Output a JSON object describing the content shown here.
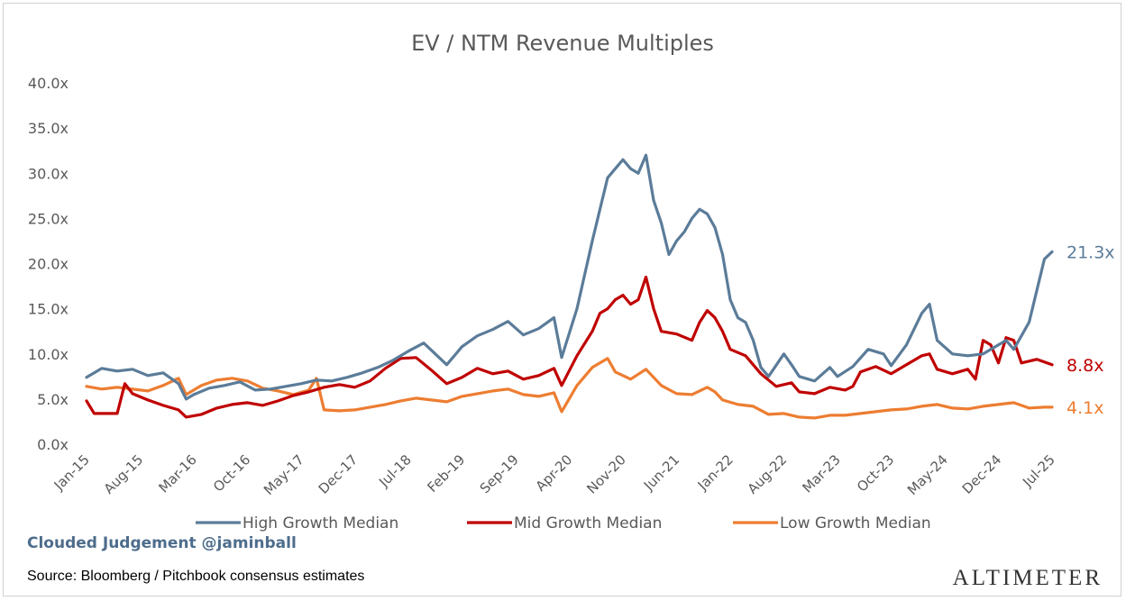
{
  "chart_data": {
    "type": "line",
    "title": "EV / NTM Revenue Multiples",
    "xlabel": "",
    "ylabel": "",
    "x_ticks": [
      "Jan-15",
      "Aug-15",
      "Mar-16",
      "Oct-16",
      "May-17",
      "Dec-17",
      "Jul-18",
      "Feb-19",
      "Sep-19",
      "Apr-20",
      "Nov-20",
      "Jun-21",
      "Jan-22",
      "Aug-22",
      "Mar-23",
      "Oct-23",
      "May-24",
      "Dec-24",
      "Jul-25"
    ],
    "y_ticks": [
      "0.0x",
      "5.0x",
      "10.0x",
      "15.0x",
      "20.0x",
      "25.0x",
      "30.0x",
      "35.0x",
      "40.0x"
    ],
    "ylim": [
      0,
      40
    ],
    "xlim": [
      "Jan-15",
      "Jul-25"
    ],
    "grid": false,
    "legend_position": "bottom",
    "series": [
      {
        "name": "High Growth Median",
        "color": "#5b7c99",
        "end_label": "21.3x",
        "points": [
          [
            "2015-01",
            7.4
          ],
          [
            "2015-03",
            8.4
          ],
          [
            "2015-05",
            8.1
          ],
          [
            "2015-07",
            8.3
          ],
          [
            "2015-09",
            7.6
          ],
          [
            "2015-11",
            7.9
          ],
          [
            "2016-01",
            6.7
          ],
          [
            "2016-02",
            5.0
          ],
          [
            "2016-03",
            5.5
          ],
          [
            "2016-05",
            6.2
          ],
          [
            "2016-07",
            6.5
          ],
          [
            "2016-09",
            6.9
          ],
          [
            "2016-11",
            6.0
          ],
          [
            "2017-01",
            6.1
          ],
          [
            "2017-03",
            6.4
          ],
          [
            "2017-05",
            6.7
          ],
          [
            "2017-07",
            7.1
          ],
          [
            "2017-09",
            7.0
          ],
          [
            "2017-11",
            7.4
          ],
          [
            "2018-01",
            7.9
          ],
          [
            "2018-03",
            8.5
          ],
          [
            "2018-05",
            9.3
          ],
          [
            "2018-07",
            10.3
          ],
          [
            "2018-09",
            11.2
          ],
          [
            "2018-10",
            10.4
          ],
          [
            "2018-12",
            8.8
          ],
          [
            "2019-02",
            10.8
          ],
          [
            "2019-04",
            12.0
          ],
          [
            "2019-06",
            12.7
          ],
          [
            "2019-08",
            13.6
          ],
          [
            "2019-10",
            12.1
          ],
          [
            "2019-12",
            12.8
          ],
          [
            "2020-02",
            14.0
          ],
          [
            "2020-03",
            9.6
          ],
          [
            "2020-05",
            15.0
          ],
          [
            "2020-07",
            22.5
          ],
          [
            "2020-08",
            26.0
          ],
          [
            "2020-09",
            29.5
          ],
          [
            "2020-10",
            30.5
          ],
          [
            "2020-11",
            31.5
          ],
          [
            "2020-12",
            30.5
          ],
          [
            "2021-01",
            30.0
          ],
          [
            "2021-02",
            32.0
          ],
          [
            "2021-03",
            27.0
          ],
          [
            "2021-04",
            24.5
          ],
          [
            "2021-05",
            21.0
          ],
          [
            "2021-06",
            22.5
          ],
          [
            "2021-07",
            23.5
          ],
          [
            "2021-08",
            25.0
          ],
          [
            "2021-09",
            26.0
          ],
          [
            "2021-10",
            25.5
          ],
          [
            "2021-11",
            24.0
          ],
          [
            "2021-12",
            21.0
          ],
          [
            "2022-01",
            16.0
          ],
          [
            "2022-02",
            14.0
          ],
          [
            "2022-03",
            13.5
          ],
          [
            "2022-04",
            11.5
          ],
          [
            "2022-05",
            8.5
          ],
          [
            "2022-06",
            7.5
          ],
          [
            "2022-08",
            10.0
          ],
          [
            "2022-09",
            8.8
          ],
          [
            "2022-10",
            7.5
          ],
          [
            "2022-12",
            7.0
          ],
          [
            "2023-02",
            8.5
          ],
          [
            "2023-03",
            7.5
          ],
          [
            "2023-05",
            8.6
          ],
          [
            "2023-07",
            10.5
          ],
          [
            "2023-09",
            10.0
          ],
          [
            "2023-10",
            8.7
          ],
          [
            "2023-12",
            11.0
          ],
          [
            "2024-02",
            14.5
          ],
          [
            "2024-03",
            15.5
          ],
          [
            "2024-04",
            11.5
          ],
          [
            "2024-06",
            10.0
          ],
          [
            "2024-08",
            9.8
          ],
          [
            "2024-10",
            10.0
          ],
          [
            "2024-12",
            11.0
          ],
          [
            "2025-01",
            11.5
          ],
          [
            "2025-02",
            10.5
          ],
          [
            "2025-03",
            12.0
          ],
          [
            "2025-04",
            13.5
          ],
          [
            "2025-05",
            17.0
          ],
          [
            "2025-06",
            20.5
          ],
          [
            "2025-07",
            21.3
          ]
        ]
      },
      {
        "name": "Mid Growth Median",
        "color": "#c00000",
        "end_label": "8.8x",
        "points": [
          [
            "2015-01",
            4.8
          ],
          [
            "2015-02",
            3.4
          ],
          [
            "2015-05",
            3.4
          ],
          [
            "2015-06",
            6.7
          ],
          [
            "2015-07",
            5.6
          ],
          [
            "2015-09",
            4.9
          ],
          [
            "2015-11",
            4.3
          ],
          [
            "2016-01",
            3.8
          ],
          [
            "2016-02",
            3.0
          ],
          [
            "2016-04",
            3.3
          ],
          [
            "2016-06",
            4.0
          ],
          [
            "2016-08",
            4.4
          ],
          [
            "2016-10",
            4.6
          ],
          [
            "2016-12",
            4.3
          ],
          [
            "2017-02",
            4.8
          ],
          [
            "2017-04",
            5.4
          ],
          [
            "2017-06",
            5.8
          ],
          [
            "2017-08",
            6.3
          ],
          [
            "2017-10",
            6.6
          ],
          [
            "2017-12",
            6.3
          ],
          [
            "2018-02",
            7.0
          ],
          [
            "2018-04",
            8.4
          ],
          [
            "2018-06",
            9.5
          ],
          [
            "2018-08",
            9.6
          ],
          [
            "2018-10",
            8.2
          ],
          [
            "2018-12",
            6.7
          ],
          [
            "2019-02",
            7.4
          ],
          [
            "2019-04",
            8.4
          ],
          [
            "2019-06",
            7.8
          ],
          [
            "2019-08",
            8.1
          ],
          [
            "2019-10",
            7.2
          ],
          [
            "2019-12",
            7.6
          ],
          [
            "2020-02",
            8.4
          ],
          [
            "2020-03",
            6.5
          ],
          [
            "2020-05",
            9.8
          ],
          [
            "2020-07",
            12.5
          ],
          [
            "2020-08",
            14.5
          ],
          [
            "2020-09",
            15.0
          ],
          [
            "2020-10",
            16.0
          ],
          [
            "2020-11",
            16.5
          ],
          [
            "2020-12",
            15.5
          ],
          [
            "2021-01",
            16.0
          ],
          [
            "2021-02",
            18.5
          ],
          [
            "2021-03",
            15.0
          ],
          [
            "2021-04",
            12.5
          ],
          [
            "2021-06",
            12.2
          ],
          [
            "2021-08",
            11.5
          ],
          [
            "2021-09",
            13.5
          ],
          [
            "2021-10",
            14.8
          ],
          [
            "2021-11",
            14.0
          ],
          [
            "2021-12",
            12.5
          ],
          [
            "2022-01",
            10.5
          ],
          [
            "2022-03",
            9.8
          ],
          [
            "2022-05",
            7.8
          ],
          [
            "2022-07",
            6.4
          ],
          [
            "2022-09",
            6.8
          ],
          [
            "2022-10",
            5.8
          ],
          [
            "2022-12",
            5.6
          ],
          [
            "2023-02",
            6.3
          ],
          [
            "2023-04",
            6.0
          ],
          [
            "2023-05",
            6.4
          ],
          [
            "2023-06",
            8.0
          ],
          [
            "2023-08",
            8.6
          ],
          [
            "2023-10",
            7.8
          ],
          [
            "2023-12",
            8.8
          ],
          [
            "2024-02",
            9.8
          ],
          [
            "2024-03",
            10.0
          ],
          [
            "2024-04",
            8.3
          ],
          [
            "2024-06",
            7.8
          ],
          [
            "2024-08",
            8.3
          ],
          [
            "2024-09",
            7.2
          ],
          [
            "2024-10",
            11.5
          ],
          [
            "2024-11",
            11.0
          ],
          [
            "2024-12",
            9.0
          ],
          [
            "2025-01",
            11.8
          ],
          [
            "2025-02",
            11.5
          ],
          [
            "2025-03",
            9.0
          ],
          [
            "2025-05",
            9.4
          ],
          [
            "2025-07",
            8.8
          ]
        ]
      },
      {
        "name": "Low Growth Median",
        "color": "#ed7d31",
        "end_label": "4.1x",
        "points": [
          [
            "2015-01",
            6.4
          ],
          [
            "2015-03",
            6.1
          ],
          [
            "2015-05",
            6.3
          ],
          [
            "2015-07",
            6.1
          ],
          [
            "2015-09",
            5.9
          ],
          [
            "2015-11",
            6.5
          ],
          [
            "2016-01",
            7.3
          ],
          [
            "2016-02",
            5.5
          ],
          [
            "2016-04",
            6.5
          ],
          [
            "2016-06",
            7.1
          ],
          [
            "2016-08",
            7.3
          ],
          [
            "2016-10",
            7.0
          ],
          [
            "2016-12",
            6.2
          ],
          [
            "2017-02",
            5.9
          ],
          [
            "2017-04",
            5.5
          ],
          [
            "2017-06",
            6.0
          ],
          [
            "2017-07",
            7.3
          ],
          [
            "2017-08",
            3.8
          ],
          [
            "2017-10",
            3.7
          ],
          [
            "2017-12",
            3.8
          ],
          [
            "2018-02",
            4.1
          ],
          [
            "2018-04",
            4.4
          ],
          [
            "2018-06",
            4.8
          ],
          [
            "2018-08",
            5.1
          ],
          [
            "2018-10",
            4.9
          ],
          [
            "2018-12",
            4.7
          ],
          [
            "2019-02",
            5.3
          ],
          [
            "2019-04",
            5.6
          ],
          [
            "2019-06",
            5.9
          ],
          [
            "2019-08",
            6.1
          ],
          [
            "2019-10",
            5.5
          ],
          [
            "2019-12",
            5.3
          ],
          [
            "2020-02",
            5.7
          ],
          [
            "2020-03",
            3.6
          ],
          [
            "2020-05",
            6.5
          ],
          [
            "2020-07",
            8.5
          ],
          [
            "2020-09",
            9.5
          ],
          [
            "2020-10",
            8.0
          ],
          [
            "2020-12",
            7.2
          ],
          [
            "2021-02",
            8.3
          ],
          [
            "2021-04",
            6.5
          ],
          [
            "2021-06",
            5.6
          ],
          [
            "2021-08",
            5.5
          ],
          [
            "2021-10",
            6.3
          ],
          [
            "2021-11",
            5.8
          ],
          [
            "2021-12",
            4.9
          ],
          [
            "2022-02",
            4.4
          ],
          [
            "2022-04",
            4.2
          ],
          [
            "2022-06",
            3.3
          ],
          [
            "2022-08",
            3.4
          ],
          [
            "2022-10",
            3.0
          ],
          [
            "2022-12",
            2.9
          ],
          [
            "2023-02",
            3.2
          ],
          [
            "2023-04",
            3.2
          ],
          [
            "2023-06",
            3.4
          ],
          [
            "2023-08",
            3.6
          ],
          [
            "2023-10",
            3.8
          ],
          [
            "2023-12",
            3.9
          ],
          [
            "2024-02",
            4.2
          ],
          [
            "2024-04",
            4.4
          ],
          [
            "2024-06",
            4.0
          ],
          [
            "2024-08",
            3.9
          ],
          [
            "2024-10",
            4.2
          ],
          [
            "2024-12",
            4.4
          ],
          [
            "2025-02",
            4.6
          ],
          [
            "2025-04",
            4.0
          ],
          [
            "2025-06",
            4.1
          ],
          [
            "2025-07",
            4.1
          ]
        ]
      }
    ]
  },
  "footer": {
    "credit": "Clouded Judgement @jaminball",
    "source": "Source: Bloomberg / Pitchbook consensus estimates",
    "brand": "ALTIMETER"
  }
}
